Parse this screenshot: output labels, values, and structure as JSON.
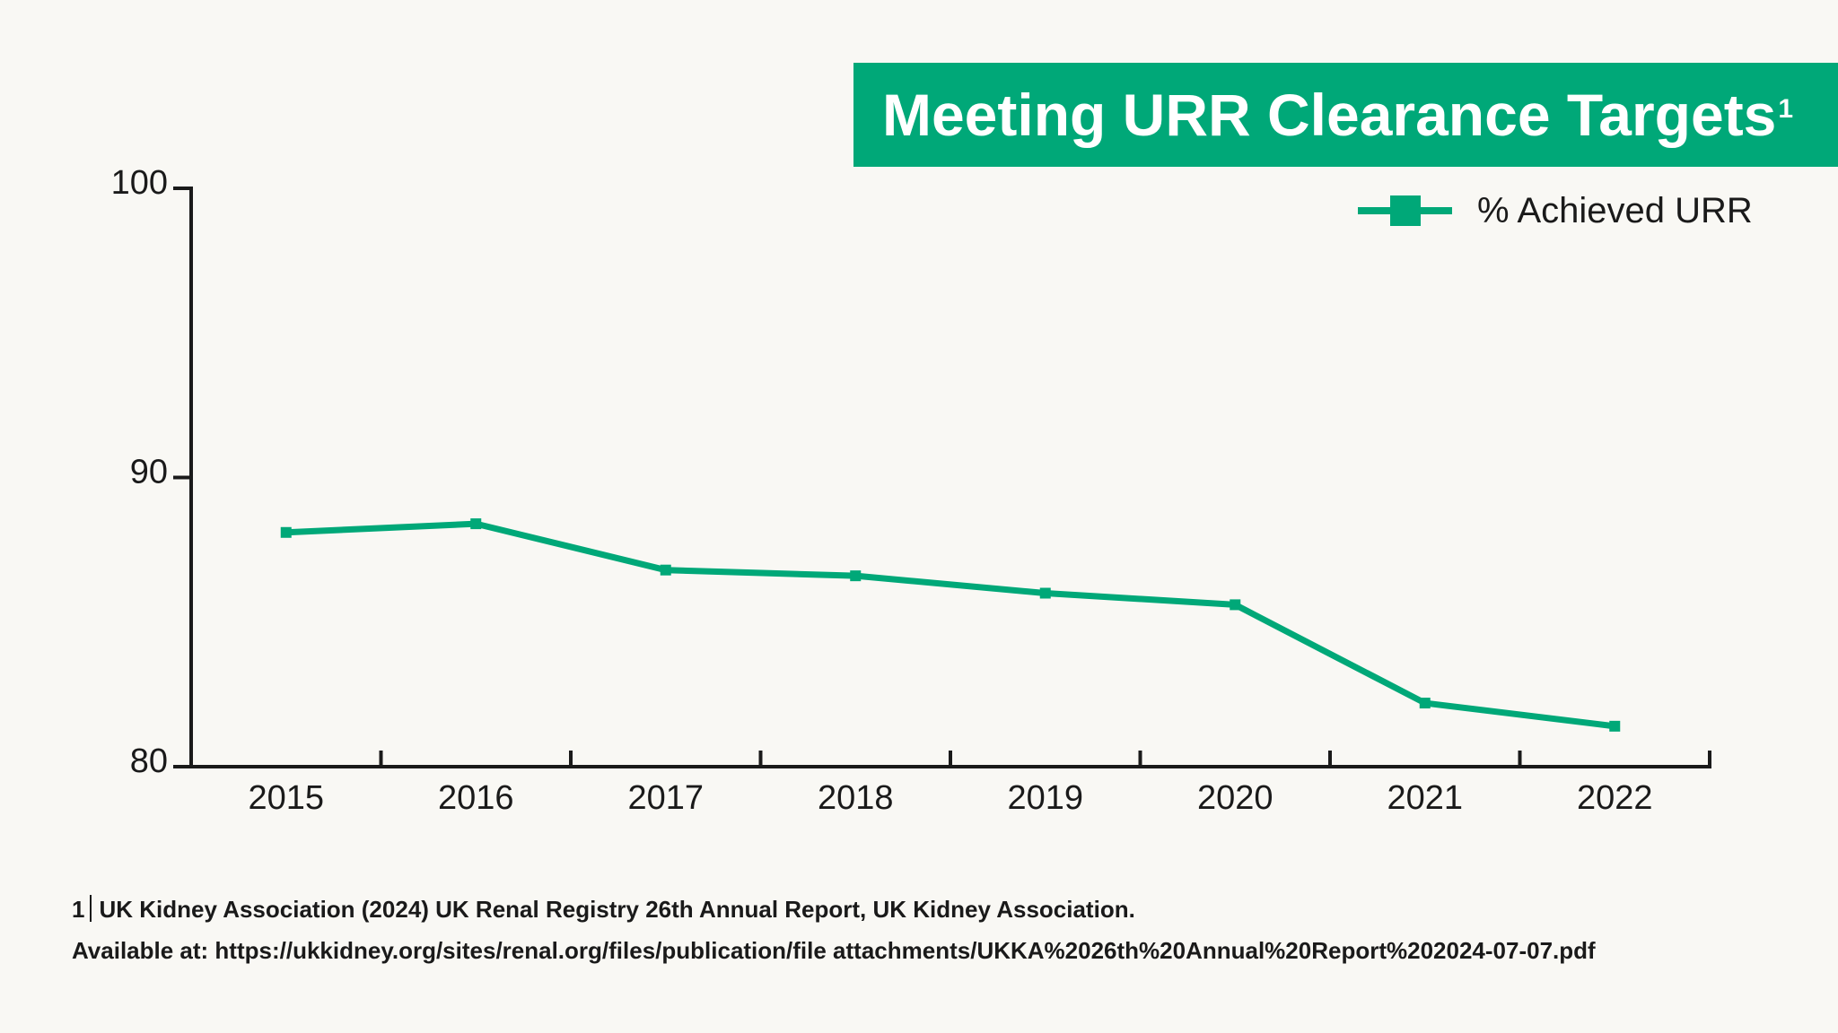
{
  "title": {
    "text": "Meeting URR Clearance Targets",
    "superscript": "1"
  },
  "colors": {
    "accent": "#00a878",
    "background": "#f9f8f4",
    "axis": "#1a1a1a"
  },
  "chart_data": {
    "type": "line",
    "x": [
      "2015",
      "2016",
      "2017",
      "2018",
      "2019",
      "2020",
      "2021",
      "2022"
    ],
    "series": [
      {
        "name": "% Achieved URR",
        "values": [
          88.1,
          88.4,
          86.8,
          86.6,
          86.0,
          85.6,
          82.2,
          81.4
        ]
      }
    ],
    "yticks": [
      "80",
      "90",
      "100"
    ],
    "ylim": [
      80,
      100
    ],
    "grid": false,
    "legend_position": "top-right",
    "marker": "square"
  },
  "footnote": {
    "number": "1",
    "line1": "UK Kidney Association (2024) UK Renal Registry 26th Annual Report, UK Kidney Association.",
    "line2": "Available at: https://ukkidney.org/sites/renal.org/files/publication/file attachments/UKKA%2026th%20Annual%20Report%202024-07-07.pdf"
  }
}
